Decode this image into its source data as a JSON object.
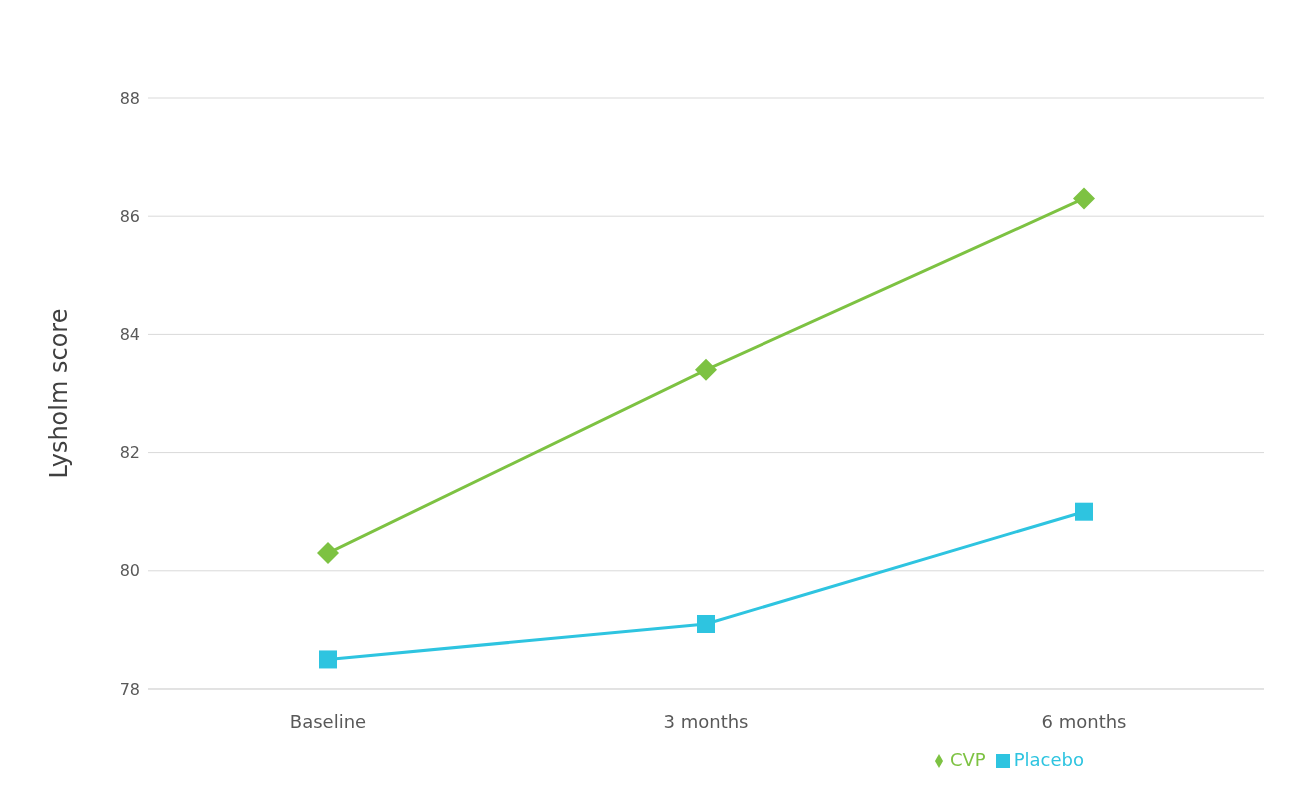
{
  "chart_data": {
    "type": "line",
    "ylabel": "Lysholm score",
    "categories": [
      "Baseline",
      "3 months",
      "6 months"
    ],
    "series": [
      {
        "name": "Placebo",
        "color": "#2ec4e0",
        "marker": "square",
        "values": [
          78.5,
          79.1,
          81.0
        ]
      },
      {
        "name": "CVP",
        "color": "#7dc242",
        "marker": "diamond",
        "values": [
          80.3,
          83.4,
          86.3
        ]
      }
    ],
    "ylim": [
      78,
      88
    ],
    "yticks": [
      78,
      80,
      82,
      84,
      86,
      88
    ],
    "grid": "y",
    "legend": "bottom right",
    "line_style": "solid"
  }
}
